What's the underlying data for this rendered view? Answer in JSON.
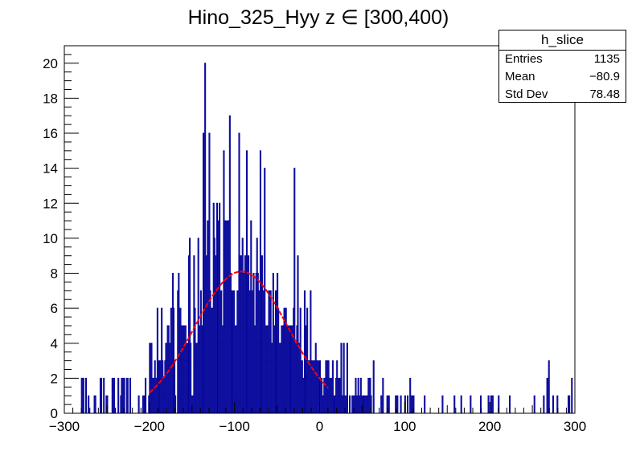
{
  "chart_data": {
    "type": "histogram",
    "title": "Hino_325_Hyy z  ∈ [300,400)",
    "xlabel": "",
    "ylabel": "",
    "xlim": [
      -300,
      300
    ],
    "ylim": [
      0,
      21
    ],
    "xticks": [
      -300,
      -200,
      -100,
      0,
      100,
      200,
      300
    ],
    "yticks": [
      0,
      2,
      4,
      6,
      8,
      10,
      12,
      14,
      16,
      18,
      20
    ],
    "bin_width": 1,
    "bins_start": -280,
    "bins_end": 300,
    "seed": 325,
    "notable_bins": [
      {
        "x": -135,
        "y": 20
      },
      {
        "x": -137,
        "y": 16
      },
      {
        "x": -130,
        "y": 16
      },
      {
        "x": -113,
        "y": 15
      },
      {
        "x": -95,
        "y": 16
      },
      {
        "x": -86,
        "y": 15
      },
      {
        "x": -70,
        "y": 15
      },
      {
        "x": -65,
        "y": 14
      },
      {
        "x": -30,
        "y": 14
      },
      {
        "x": 267,
        "y": 2
      },
      {
        "x": 269,
        "y": 3
      },
      {
        "x": 296,
        "y": 2
      }
    ],
    "series": [
      {
        "name": "h_slice",
        "color": "#000099",
        "style": "bar-outline"
      },
      {
        "name": "gaussian fit",
        "color": "#ff0000",
        "style": "curve",
        "amplitude": 8.1,
        "mean": -92,
        "sigma": 55,
        "range": [
          -200,
          10
        ]
      }
    ],
    "grid": false
  },
  "stats": {
    "title": "h_slice",
    "rows": [
      {
        "label": "Entries",
        "value": "1135"
      },
      {
        "label": "Mean",
        "value": "−80.9"
      },
      {
        "label": "Std Dev",
        "value": "78.48"
      }
    ]
  }
}
